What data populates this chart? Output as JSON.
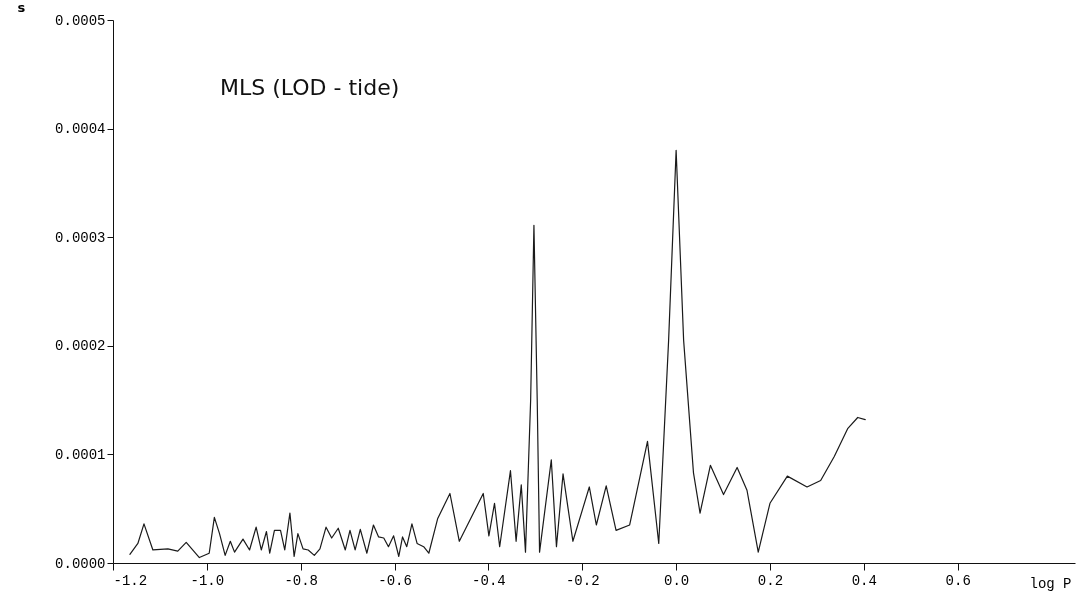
{
  "chart_data": {
    "type": "line",
    "ylabel": "s",
    "xlabel": "log P",
    "annotations": [
      "MLS (LOD - tide)"
    ],
    "xlim": [
      -1.2,
      0.85
    ],
    "xticks": [
      {
        "value": -1.2,
        "label": "-1.2"
      },
      {
        "value": -1.0,
        "label": "-1.0"
      },
      {
        "value": -0.8,
        "label": "-0.8"
      },
      {
        "value": -0.6,
        "label": "-0.6"
      },
      {
        "value": -0.4,
        "label": "-0.4"
      },
      {
        "value": -0.2,
        "label": "-0.2"
      },
      {
        "value": 0,
        "label": "0.0"
      },
      {
        "value": 0.2,
        "label": "0.2"
      },
      {
        "value": 0.4,
        "label": "0.4"
      },
      {
        "value": 0.6,
        "label": "0.6"
      }
    ],
    "ylim": [
      0,
      0.0005
    ],
    "yticks": [
      {
        "value": 0,
        "label": "0.0000"
      },
      0.0001,
      {
        "value": 0.0002,
        "label": "0.0002"
      },
      0.0003,
      0.0004,
      0.0005
    ],
    "grid": false,
    "marker": "none",
    "line_style": "solid",
    "series": [
      {
        "color": "#1a1a1a",
        "x": [
          -1.164,
          -1.147,
          -1.134,
          -1.115,
          -1.083,
          -1.062,
          -1.044,
          -1.016,
          -0.995,
          -0.984,
          -0.973,
          -0.961,
          -0.95,
          -0.941,
          -0.923,
          -0.909,
          -0.895,
          -0.884,
          -0.873,
          -0.866,
          -0.856,
          -0.843,
          -0.834,
          -0.823,
          -0.814,
          -0.806,
          -0.795,
          -0.784,
          -0.771,
          -0.759,
          -0.746,
          -0.734,
          -0.72,
          -0.705,
          -0.695,
          -0.684,
          -0.673,
          -0.659,
          -0.645,
          -0.634,
          -0.623,
          -0.613,
          -0.602,
          -0.591,
          -0.583,
          -0.574,
          -0.563,
          -0.552,
          -0.538,
          -0.527,
          -0.508,
          -0.482,
          -0.462,
          -0.411,
          -0.399,
          -0.387,
          -0.376,
          -0.353,
          -0.341,
          -0.33,
          -0.321,
          -0.31,
          -0.303,
          -0.296,
          -0.291,
          -0.266,
          -0.255,
          -0.241,
          -0.22,
          -0.185,
          -0.17,
          -0.149,
          -0.128,
          -0.099,
          -0.061,
          -0.037,
          -0.016,
          0.0,
          0.016,
          0.037,
          0.051,
          0.073,
          0.101,
          0.13,
          0.151,
          0.175,
          0.2,
          0.237,
          0.279,
          0.308,
          0.337,
          0.366,
          0.387,
          0.403
        ],
        "values": [
          8e-06,
          1.8e-05,
          3.6e-05,
          1.2e-05,
          1.3e-05,
          1.1e-05,
          1.9e-05,
          5e-06,
          9e-06,
          4.2e-05,
          2.7e-05,
          7e-06,
          2e-05,
          1e-05,
          2.2e-05,
          1.2e-05,
          3.3e-05,
          1.2e-05,
          2.9e-05,
          9e-06,
          3e-05,
          3e-05,
          1.2e-05,
          4.6e-05,
          6e-06,
          2.7e-05,
          1.3e-05,
          1.2e-05,
          7e-06,
          1.3e-05,
          3.3e-05,
          2.3e-05,
          3.2e-05,
          1.2e-05,
          3e-05,
          1.2e-05,
          3.1e-05,
          9e-06,
          3.5e-05,
          2.4e-05,
          2.3e-05,
          1.5e-05,
          2.5e-05,
          6e-06,
          2.4e-05,
          1.5e-05,
          3.6e-05,
          1.8e-05,
          1.5e-05,
          9e-06,
          4.1e-05,
          6.4e-05,
          2e-05,
          6.4e-05,
          2.5e-05,
          5.5e-05,
          1.5e-05,
          8.5e-05,
          2e-05,
          7.2e-05,
          1e-05,
          0.00015,
          0.000311,
          0.00015,
          1e-05,
          9.5e-05,
          1.5e-05,
          8.2e-05,
          2e-05,
          7e-05,
          3.5e-05,
          7.1e-05,
          3e-05,
          3.5e-05,
          0.000112,
          1.8e-05,
          0.000205,
          0.00038,
          0.000205,
          8.3e-05,
          4.6e-05,
          9e-05,
          6.3e-05,
          8.8e-05,
          6.7e-05,
          1e-05,
          5.5e-05,
          8e-05,
          7e-05,
          7.6e-05,
          9.8e-05,
          0.000124,
          0.000134,
          0.000132
        ]
      }
    ]
  }
}
